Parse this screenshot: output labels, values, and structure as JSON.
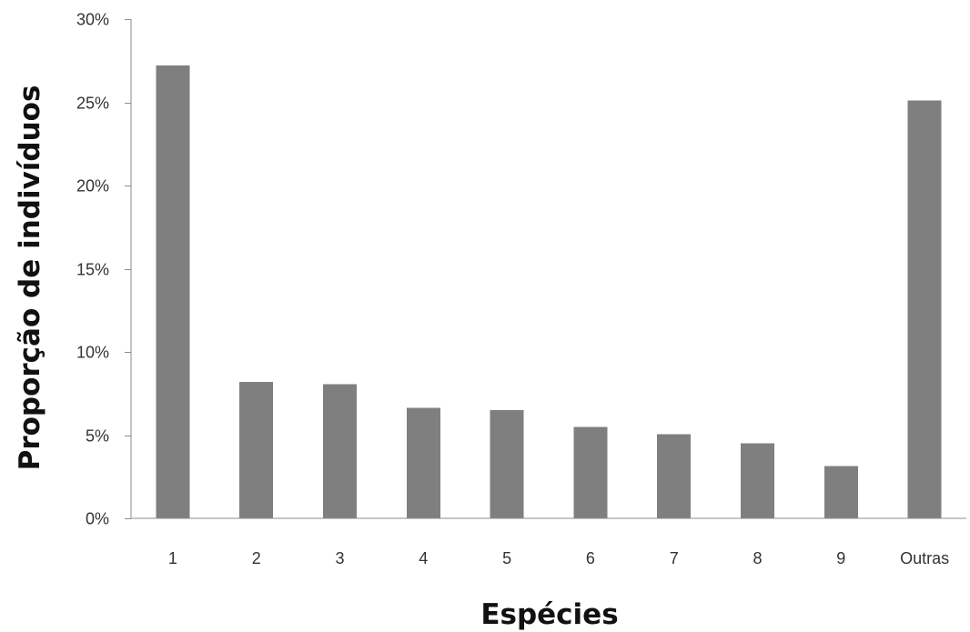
{
  "chart_data": {
    "type": "bar",
    "title": "",
    "xlabel": "Espécies",
    "ylabel": "Proporção de indivíduos",
    "categories": [
      "1",
      "2",
      "3",
      "4",
      "5",
      "6",
      "7",
      "8",
      "9",
      "Outras"
    ],
    "values": [
      27.2,
      8.2,
      8.05,
      6.65,
      6.5,
      5.5,
      5.05,
      4.5,
      3.15,
      25.1
    ],
    "ylim": [
      0,
      30
    ],
    "yticks": [
      "0%",
      "5%",
      "10%",
      "15%",
      "20%",
      "25%",
      "30%"
    ],
    "grid": false,
    "legend": "none",
    "bar_color": "#7f7f7f"
  }
}
